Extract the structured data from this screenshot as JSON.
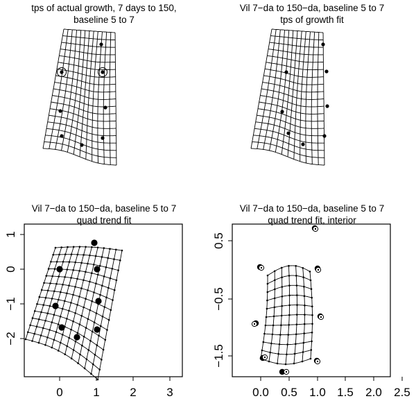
{
  "panels": [
    {
      "title_line1": "tps of actual growth, 7 days to 150,",
      "title_line2": "baseline 5  to  7"
    },
    {
      "title_line1": "Vil 7−da to 150−da, baseline 5  to  7",
      "title_line2": "tps of growth fit"
    },
    {
      "title_line1": "Vil 7−da to 150−da, baseline 5  to  7",
      "title_line2": "quad trend fit",
      "x_ticks": [
        "0",
        "1",
        "2",
        "3"
      ],
      "y_ticks": [
        "1",
        "0",
        "−1",
        "−2"
      ]
    },
    {
      "title_line1": "Vil 7−da to 150−da, baseline 5  to  7",
      "title_line2": "quad trend fit, interior",
      "x_ticks": [
        "0.0",
        "0.5",
        "1.0",
        "1.5",
        "2.0",
        "2.5"
      ],
      "y_ticks": [
        "0.5",
        "−0.5",
        "−1.5"
      ]
    }
  ]
}
